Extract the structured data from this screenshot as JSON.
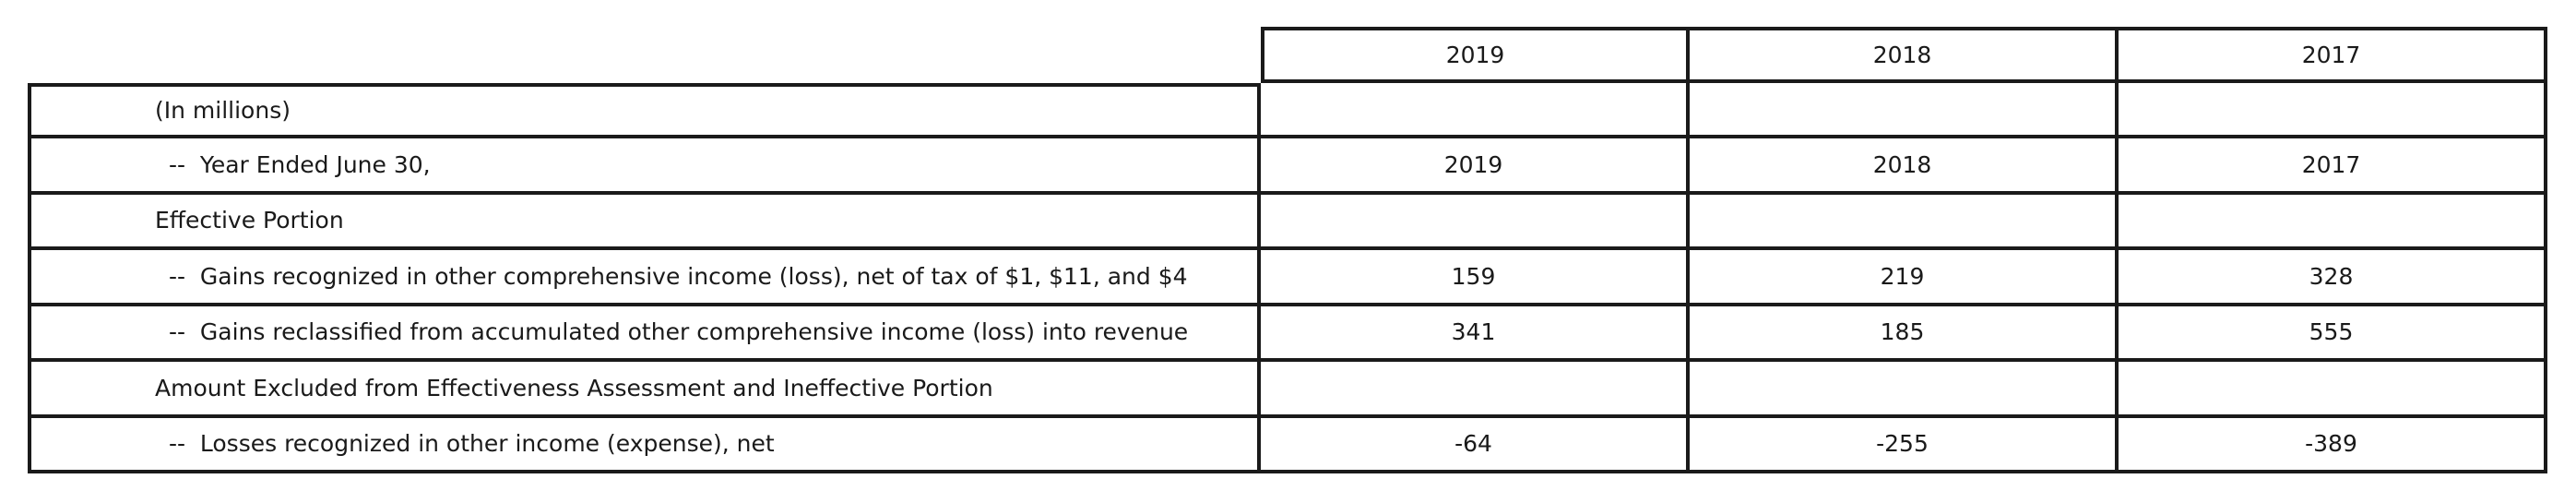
{
  "header": {
    "years": [
      "2019",
      "2018",
      "2017"
    ]
  },
  "rows": [
    {
      "label": "(In millions)",
      "values": [
        "",
        "",
        ""
      ]
    },
    {
      "label": " --  Year Ended June 30,",
      "values": [
        "2019",
        "2018",
        "2017"
      ]
    },
    {
      "label": "Effective Portion",
      "values": [
        "",
        "",
        ""
      ]
    },
    {
      "label": " --  Gains recognized in other comprehensive income (loss), net of tax of $1, $11, and $4",
      "values": [
        "159",
        "219",
        "328"
      ]
    },
    {
      "label": " --  Gains reclassified from accumulated other comprehensive income (loss) into revenue",
      "values": [
        "341",
        "185",
        "555"
      ]
    },
    {
      "label": "Amount Excluded from Effectiveness Assessment and Ineffective Portion",
      "values": [
        "",
        "",
        ""
      ]
    },
    {
      "label": " --  Losses recognized in other income (expense), net",
      "values": [
        "-64",
        "-255",
        "-389"
      ]
    }
  ]
}
